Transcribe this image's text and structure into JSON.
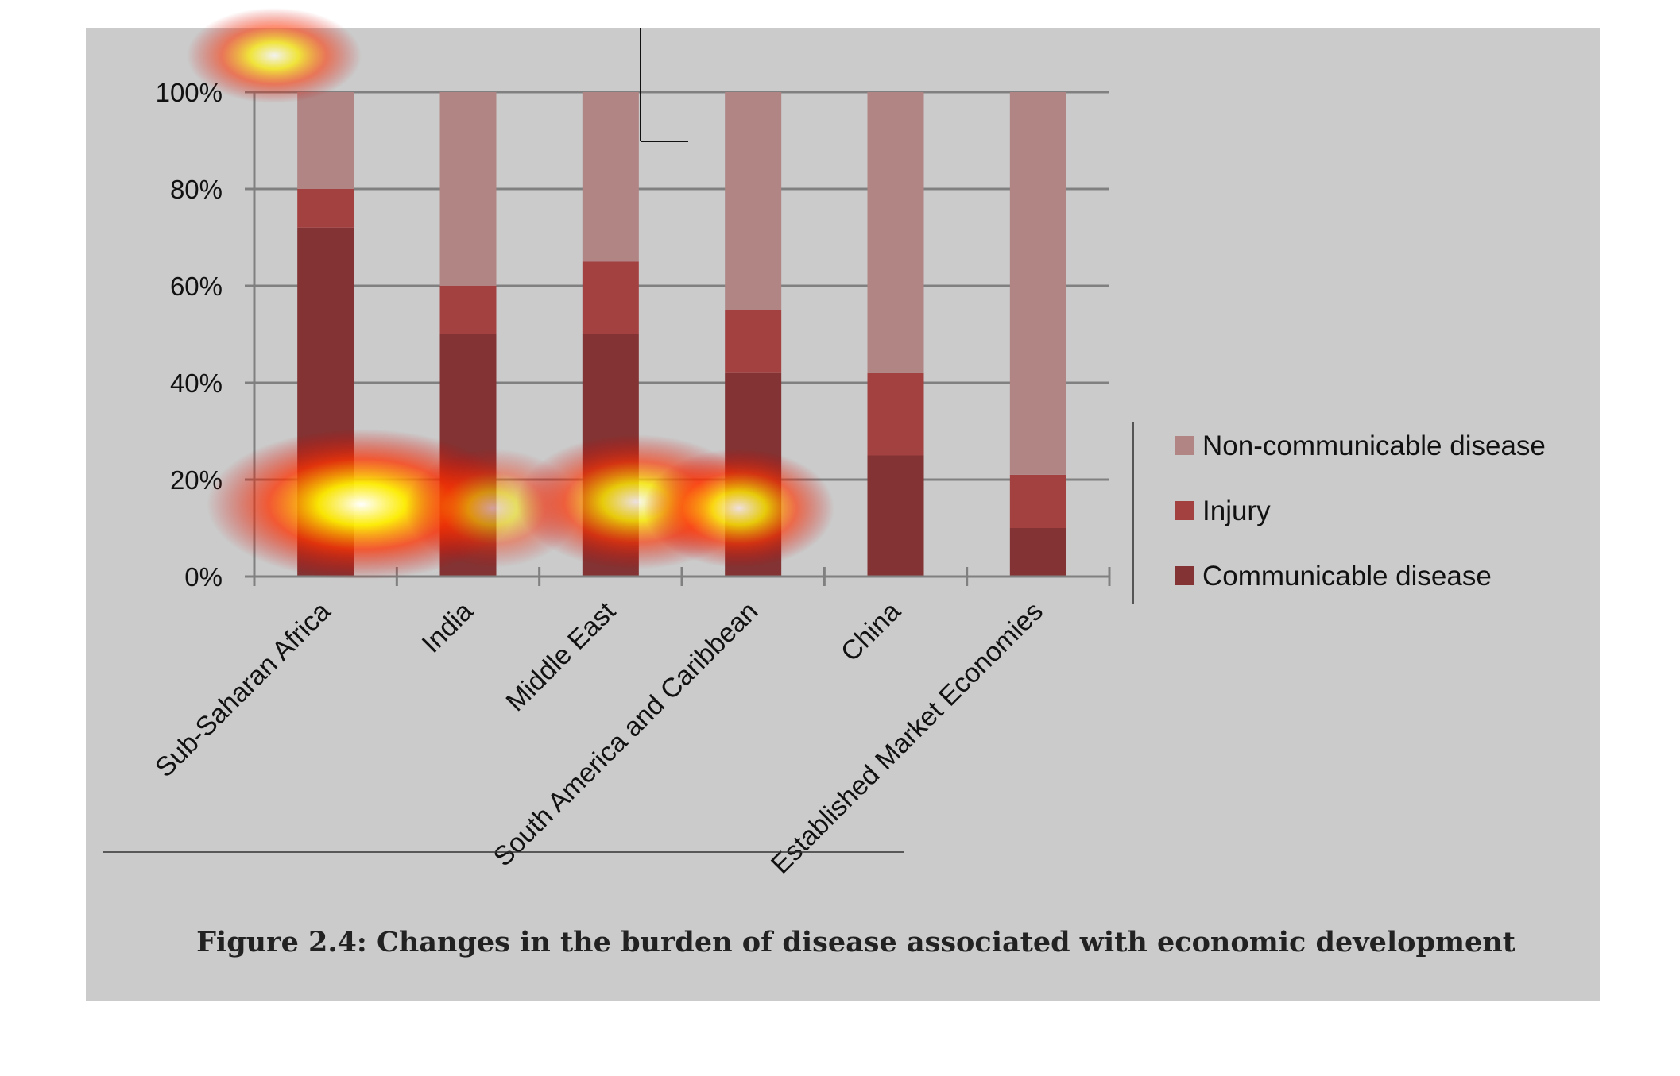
{
  "figure": {
    "caption": "Figure 2.4: Changes in the burden of disease associated with economic development"
  },
  "colors": {
    "background": "#cbcbcb",
    "page": "#ffffff",
    "gridline": "#808080",
    "axis": "#808080",
    "heat_outer": "#cc0000",
    "heat_mid": "#ff3300",
    "heat_inner": "#ffee00",
    "heat_core": "#ffffff"
  },
  "chart_data": {
    "type": "bar",
    "stacked": true,
    "percent": true,
    "title": "",
    "xlabel": "",
    "ylabel": "",
    "categories": [
      "Sub-Saharan Africa",
      "India",
      "Middle East",
      "South America and Caribbean",
      "China",
      "Established Market Economies"
    ],
    "series": [
      {
        "name": "Communicable disease",
        "color": "#833333",
        "values": [
          72,
          50,
          50,
          42,
          25,
          10
        ]
      },
      {
        "name": "Injury",
        "color": "#a34141",
        "values": [
          8,
          10,
          15,
          13,
          17,
          11
        ]
      },
      {
        "name": "Non-communicable disease",
        "color": "#b08584",
        "values": [
          20,
          40,
          35,
          45,
          58,
          79
        ]
      }
    ],
    "ylim": [
      0,
      100
    ],
    "yticks": [
      "0%",
      "20%",
      "40%",
      "60%",
      "80%",
      "100%"
    ],
    "grid": true,
    "legend_position": "right"
  },
  "heatmap_overlay": [
    {
      "near": "top-left corner, above 100% label",
      "intensity": 0.75
    },
    {
      "near": "Sub-Saharan Africa bar, around 10%",
      "intensity": 1.0
    },
    {
      "near": "India bar, around 15%",
      "intensity": 0.55
    },
    {
      "near": "Middle East bar, around 15%",
      "intensity": 0.85
    },
    {
      "near": "South America and Caribbean bar, around 15%",
      "intensity": 0.85
    }
  ]
}
